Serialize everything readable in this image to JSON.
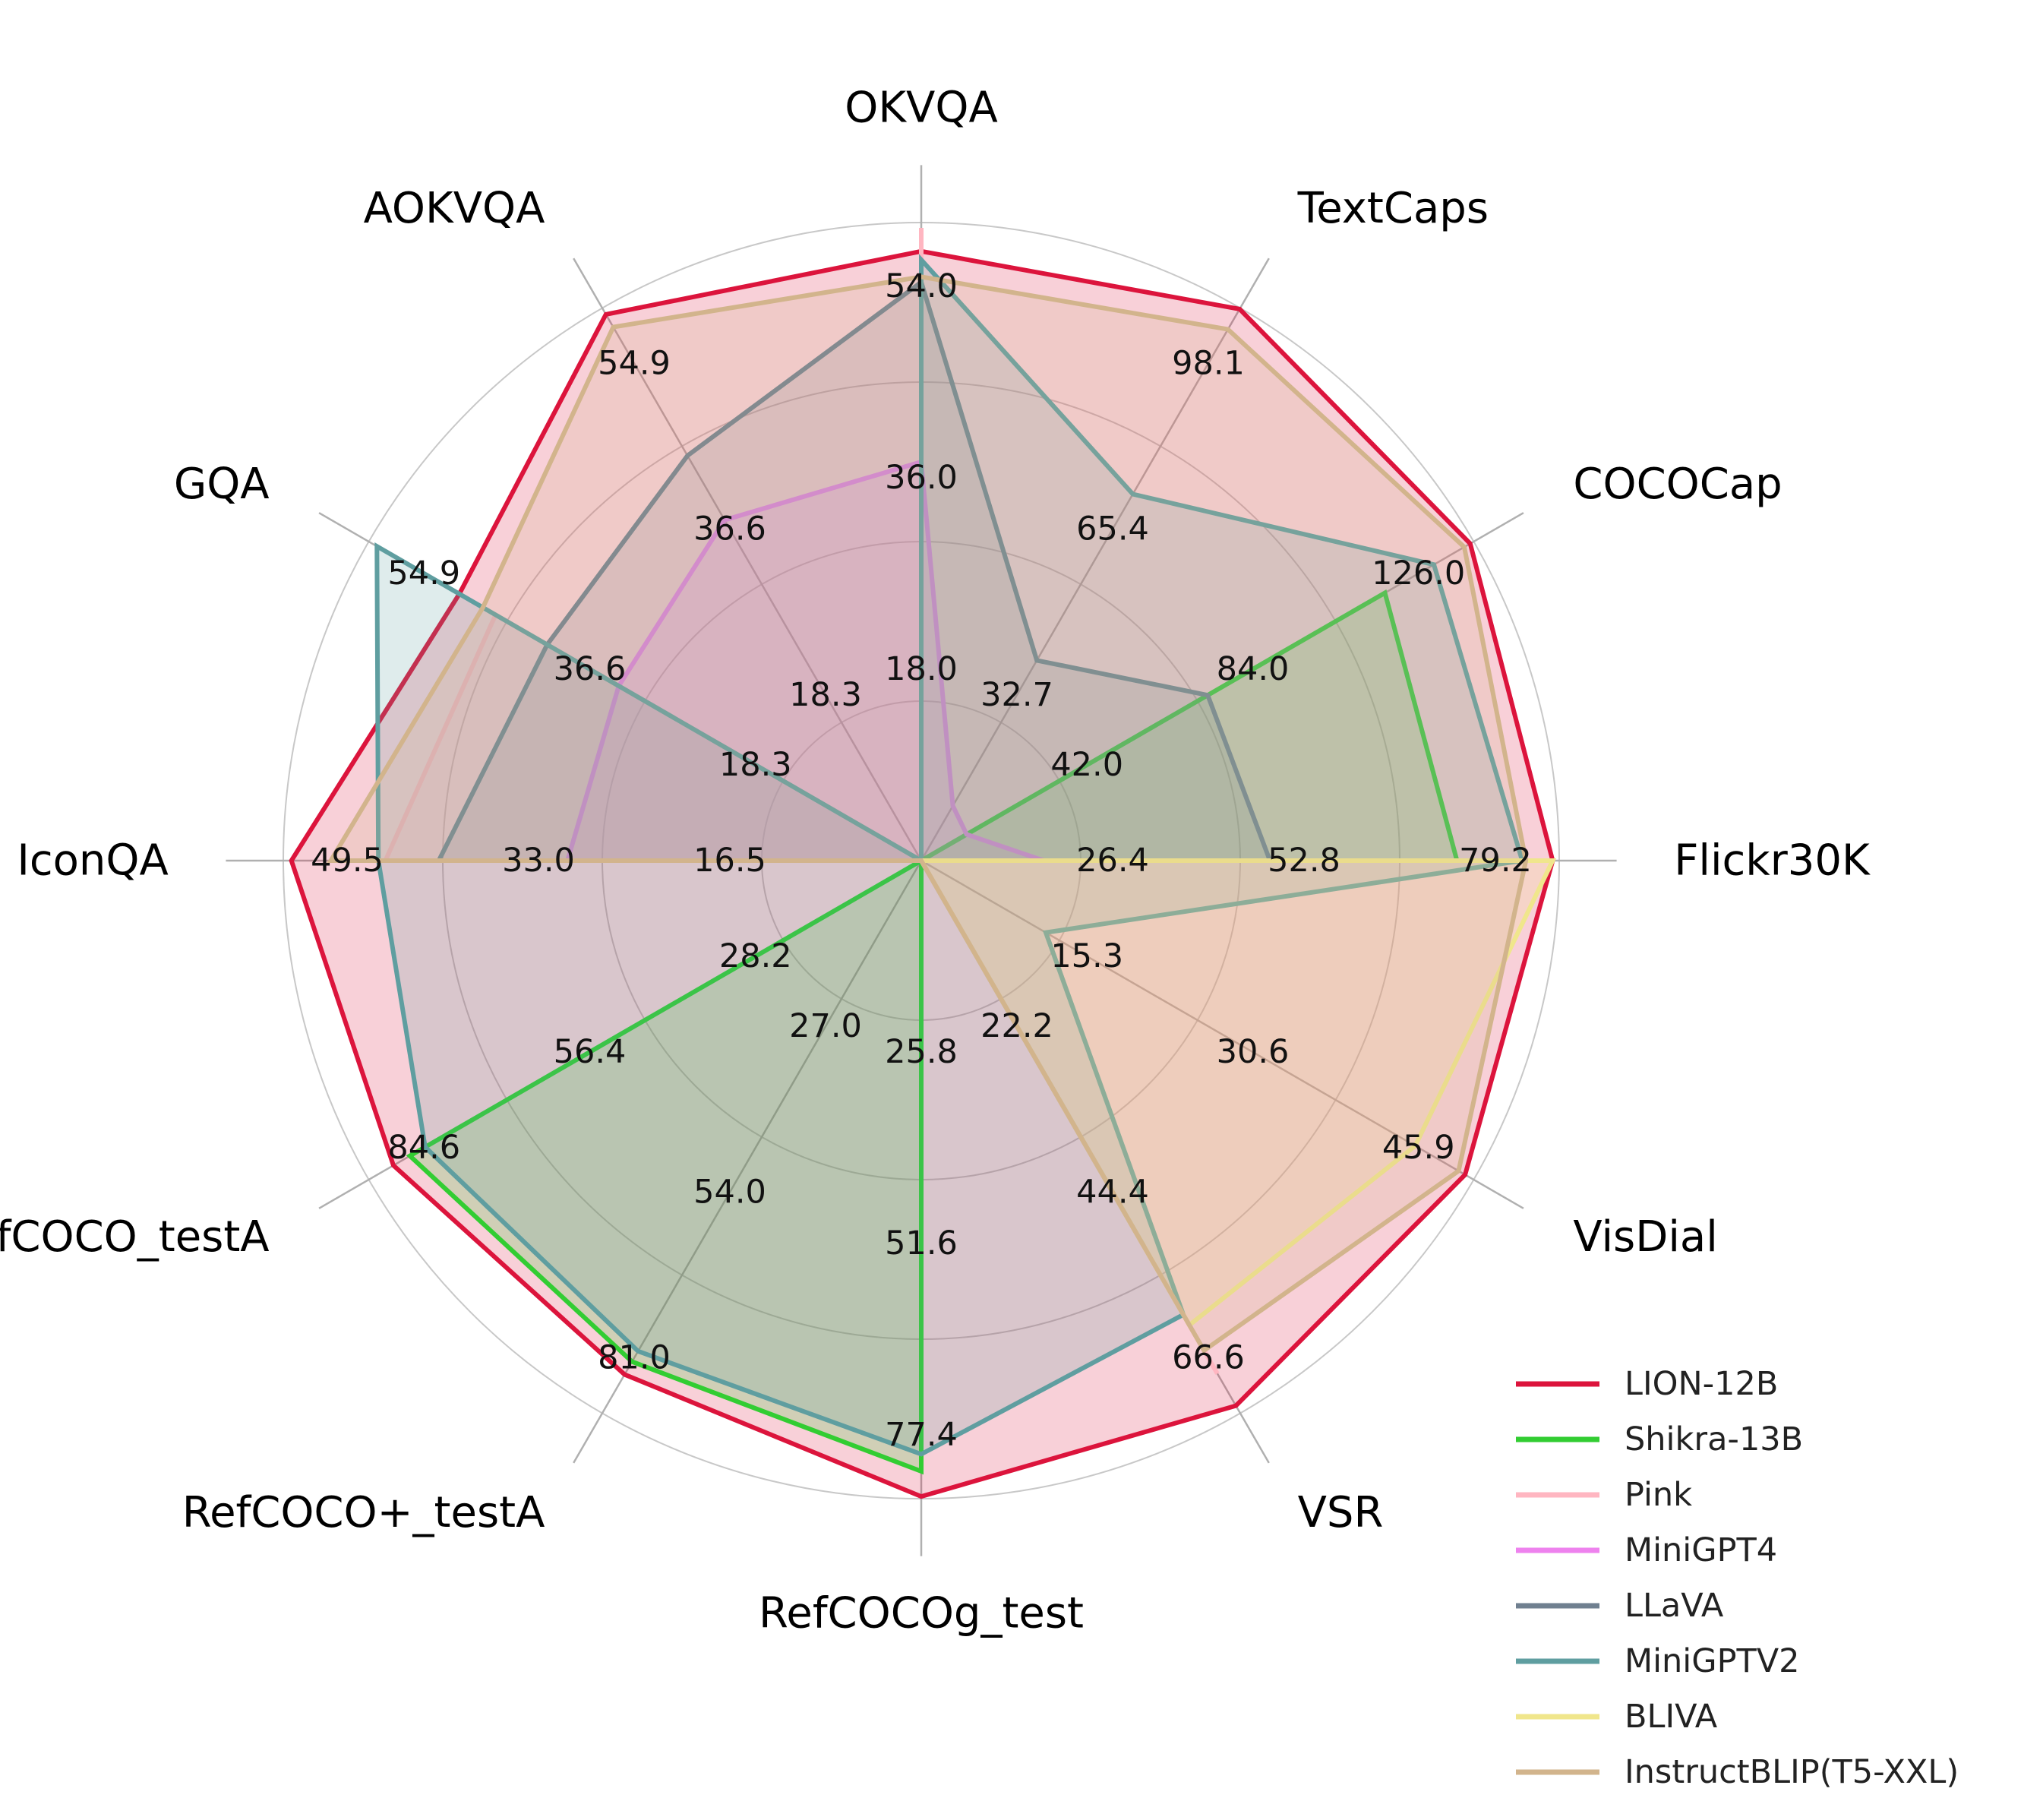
{
  "chart_data": {
    "type": "radar",
    "title": "",
    "axes": [
      "Flickr30K",
      "COCOCap",
      "TextCaps",
      "OKVQA",
      "AOKVQA",
      "GQA",
      "IconQA",
      "RefCOCO_testA",
      "RefCOCO+_testA",
      "RefCOCOg_test",
      "VSR",
      "VisDial"
    ],
    "axis_max": [
      88,
      140,
      109,
      60,
      61,
      61,
      55,
      94,
      90,
      86,
      74,
      51
    ],
    "tick_labels": [
      [
        "26.4",
        "52.8",
        "79.2"
      ],
      [
        "42.0",
        "84.0",
        "126.0"
      ],
      [
        "32.7",
        "65.4",
        "98.1"
      ],
      [
        "18.0",
        "36.0",
        "54.0"
      ],
      [
        "18.3",
        "36.6",
        "54.9"
      ],
      [
        "18.3",
        "36.6",
        "54.9"
      ],
      [
        "16.5",
        "33.0",
        "49.5"
      ],
      [
        "28.2",
        "56.4",
        "84.6"
      ],
      [
        "27.0",
        "54.0",
        "81.0"
      ],
      [
        "25.8",
        "51.6",
        "77.4"
      ],
      [
        "22.2",
        "44.4",
        "66.6"
      ],
      [
        "15.3",
        "30.6",
        "45.9"
      ]
    ],
    "legend_position": "bottom-right",
    "series": [
      {
        "name": "LION-12B",
        "color": "#dc143c",
        "values": [
          87.1,
          139.1,
          108.8,
          57.3,
          60.3,
          51.0,
          54.3,
          89.8,
          83.7,
          85.7,
          73.0,
          50.2
        ]
      },
      {
        "name": "Shikra-13B",
        "color": "#32cd32",
        "values": [
          73.9,
          117.5,
          0,
          0,
          0,
          0,
          0,
          87.0,
          81.6,
          82.3,
          0,
          0
        ]
      },
      {
        "name": "Pink",
        "color": "#ffb6c1",
        "values": [
          0,
          0,
          0,
          59.5,
          0,
          47.0,
          46.2,
          0,
          0,
          0,
          68.7,
          0
        ]
      },
      {
        "name": "MiniGPT4",
        "color": "#ee82ee",
        "values": [
          16.9,
          11.5,
          10.8,
          37.5,
          37.6,
          33.4,
          30.5,
          0,
          0,
          0,
          41.6,
          0
        ]
      },
      {
        "name": "LLaVA",
        "color": "#708090",
        "values": [
          48.1,
          72.6,
          39.5,
          54.4,
          44.7,
          41.3,
          41.6,
          0,
          0,
          0,
          51.6,
          0
        ]
      },
      {
        "name": "MiniGPTV2",
        "color": "#5f9ea0",
        "values": [
          82.9,
          129.9,
          72.3,
          56.5,
          0,
          60.1,
          46.8,
          84.4,
          79.9,
          80.0,
          60.8,
          11.5
        ]
      },
      {
        "name": "BLIVA",
        "color": "#f0e68c",
        "values": [
          87.1,
          0,
          0,
          0,
          0,
          0,
          0,
          0,
          0,
          0,
          62.2,
          45.6
        ]
      },
      {
        "name": "InstructBLIP(T5-XXL)",
        "color": "#d2b48c",
        "values": [
          83.4,
          137.6,
          104.8,
          54.9,
          58.9,
          48.4,
          50.9,
          0,
          0,
          0,
          65.6,
          49.6
        ]
      }
    ]
  }
}
